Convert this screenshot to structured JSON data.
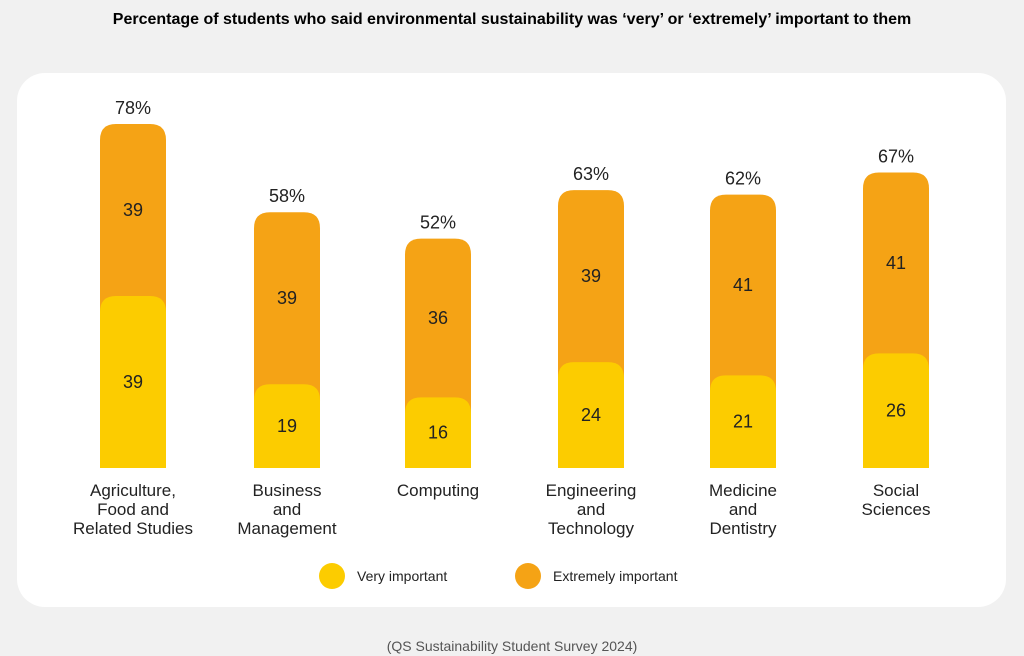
{
  "title": "Percentage of students who said environmental sustainability was ‘very’ or ‘extremely’ important to them",
  "source": "(QS Sustainability Student Survey 2024)",
  "colors": {
    "very": "#fccc00",
    "extremely": "#f5a315",
    "card": "#ffffff",
    "background": "#f1f1f1"
  },
  "legend": [
    {
      "label": "Very important",
      "color": "#fccc00"
    },
    {
      "label": "Extremely important",
      "color": "#f5a315"
    }
  ],
  "chart_data": {
    "type": "bar",
    "stacked": true,
    "title": "Percentage of students who said environmental sustainability was ‘very’ or ‘extremely’ important to them",
    "categories": [
      "Agriculture, Food and Related Studies",
      "Business and Management",
      "Computing",
      "Engineering and Technology",
      "Medicine and Dentistry",
      "Social Sciences"
    ],
    "category_lines": [
      [
        "Agriculture,",
        "Food and",
        "Related Studies"
      ],
      [
        "Business",
        "and",
        "Management"
      ],
      [
        "Computing"
      ],
      [
        "Engineering",
        "and",
        "Technology"
      ],
      [
        "Medicine",
        "and",
        "Dentistry"
      ],
      [
        "Social",
        "Sciences"
      ]
    ],
    "series": [
      {
        "name": "Very important",
        "values": [
          39,
          19,
          16,
          24,
          21,
          26
        ]
      },
      {
        "name": "Extremely important",
        "values": [
          39,
          39,
          36,
          39,
          41,
          41
        ]
      }
    ],
    "totals": [
      "78%",
      "58%",
      "52%",
      "63%",
      "62%",
      "67%"
    ],
    "ylim": [
      0,
      78
    ],
    "grid": false,
    "legend_position": "bottom-center"
  }
}
